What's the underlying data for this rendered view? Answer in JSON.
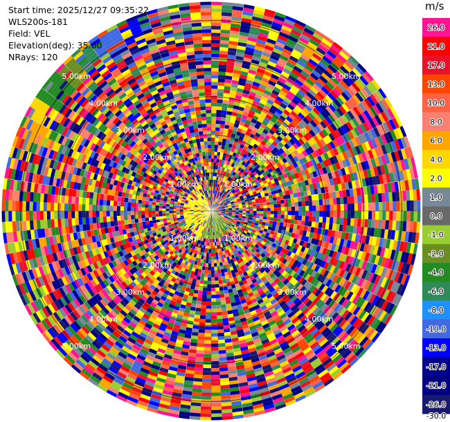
{
  "header": {
    "start_time": "Start time: 2025/12/27 09:35:22",
    "instrument": "WLS200s-181",
    "field": "Field: VEL",
    "elevation": "Elevation(deg): 35.00",
    "nrays": "NRays: 120"
  },
  "chart_data": {
    "type": "heatmap",
    "projection": "polar PPI scan",
    "field": "VEL",
    "units": "m/s",
    "elevation_deg": 35.0,
    "n_rays": 120,
    "range_rings_km": [
      1,
      2,
      3,
      4,
      5
    ],
    "range_ring_labels": [
      "1.00km",
      "2.00km",
      "3.00km",
      "4.00km",
      "5.00km"
    ],
    "max_range_km": 5.5,
    "colorbar": {
      "title": "m/s",
      "ticks": [
        "26.0",
        "21.0",
        "17.0",
        "13.0",
        "10.0",
        "8.0",
        "6.0",
        "4.0",
        "2.0",
        "1.0",
        "0.0",
        "-1.0",
        "-2.0",
        "-4.0",
        "-6.0",
        "-8.0",
        "-10.0",
        "-13.0",
        "-17.0",
        "-21.0",
        "-26.0",
        "-30.0"
      ],
      "colors": [
        "#ff1493",
        "#ff0000",
        "#e8132b",
        "#ff4500",
        "#ff6347",
        "#fa8072",
        "#ffa500",
        "#ffd700",
        "#ffff00",
        "#778899",
        "#696969",
        "#9acd32",
        "#6b8e23",
        "#228b22",
        "#2e8b57",
        "#1e90ff",
        "#4169e1",
        "#0000ff",
        "#00008b",
        "#000080",
        "#191970"
      ]
    }
  }
}
